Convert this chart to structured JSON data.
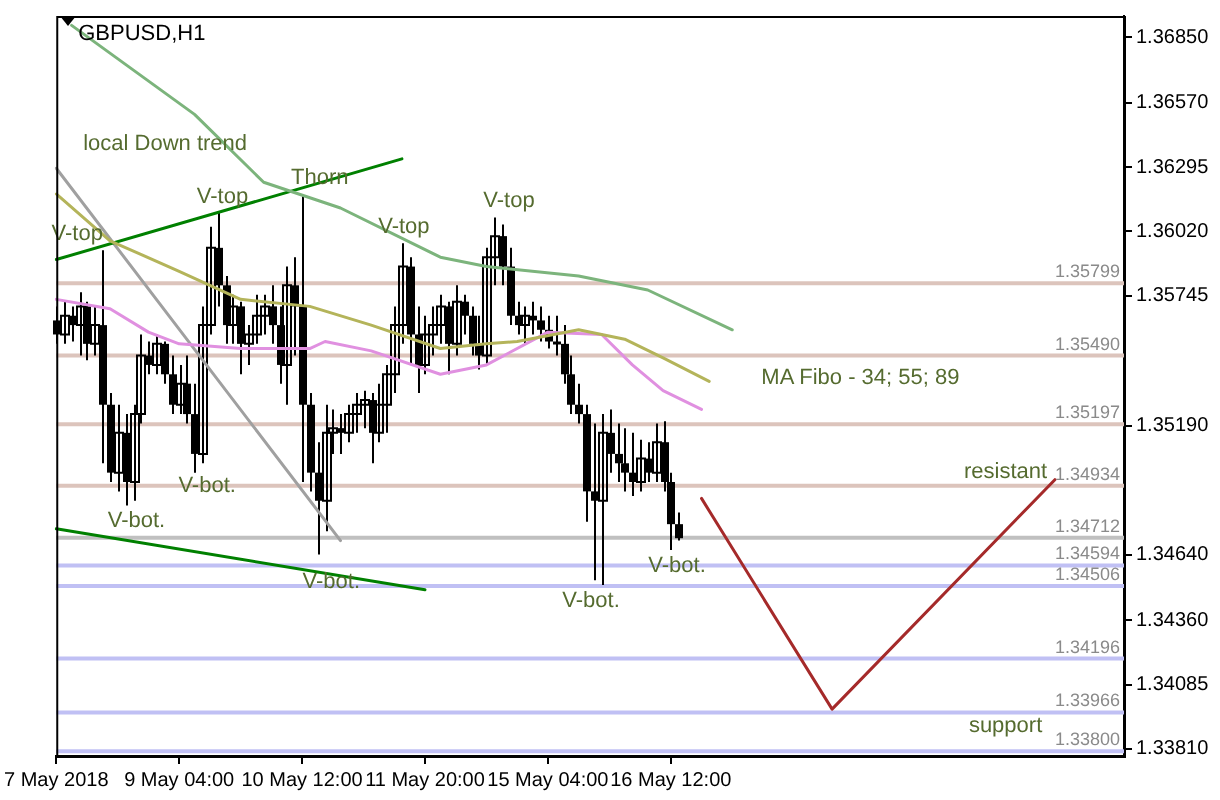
{
  "chart_data": {
    "type": "candlestick",
    "title": "GBPUSD,H1",
    "color": "#000000",
    "categories": [
      "7 May 2018",
      null,
      null,
      null,
      null,
      null,
      null,
      null,
      null,
      null,
      null,
      null,
      null,
      null,
      null,
      null,
      "9 May 04:00",
      null,
      null,
      null,
      null,
      null,
      null,
      null,
      null,
      null,
      null,
      null,
      null,
      null,
      null,
      null,
      "10 May 12:00",
      null,
      null,
      null,
      null,
      null,
      null,
      null,
      null,
      null,
      null,
      null,
      null,
      null,
      null,
      null,
      "11 May 20:00",
      null,
      null,
      null,
      null,
      null,
      null,
      null,
      null,
      null,
      null,
      null,
      null,
      null,
      null,
      null,
      "15 May 04:00",
      null,
      null,
      null,
      null,
      null,
      null,
      null,
      null,
      null,
      null,
      null,
      null,
      null,
      null,
      null,
      "16 May 12:00",
      null,
      null,
      null,
      null,
      null,
      null,
      null,
      null,
      null,
      null,
      null,
      null,
      null,
      null,
      null,
      null,
      null,
      null,
      null,
      null,
      null,
      null,
      null,
      null,
      null,
      null,
      null,
      null,
      null,
      null,
      null,
      null,
      null,
      null,
      null,
      null,
      null,
      null,
      null,
      null,
      null,
      null,
      null,
      null,
      null,
      null,
      null,
      null,
      null,
      null,
      null,
      null,
      null,
      null,
      null,
      null,
      null,
      null,
      null
    ],
    "ohlc": [
      [
        1.3564,
        1.357,
        1.3554,
        1.3558
      ],
      [
        1.3558,
        1.3572,
        1.3554,
        1.3566
      ],
      [
        1.3566,
        1.357,
        1.3555,
        1.3562
      ],
      [
        1.3562,
        1.3576,
        1.3549,
        1.357
      ],
      [
        1.357,
        1.3572,
        1.3547,
        1.3554
      ],
      [
        1.3554,
        1.357,
        1.3549,
        1.3562
      ],
      [
        1.3562,
        1.3594,
        1.3503,
        1.3528
      ],
      [
        1.3528,
        1.3533,
        1.3495,
        1.3499
      ],
      [
        1.3499,
        1.3528,
        1.3491,
        1.3516
      ],
      [
        1.3516,
        1.3524,
        1.3485,
        1.3495
      ],
      [
        1.3495,
        1.3528,
        1.3487,
        1.3524
      ],
      [
        1.3524,
        1.3558,
        1.352,
        1.3549
      ],
      [
        1.3549,
        1.3555,
        1.3541,
        1.3545
      ],
      [
        1.3545,
        1.3558,
        1.3541,
        1.3554
      ],
      [
        1.3554,
        1.3555,
        1.3537,
        1.3541
      ],
      [
        1.3541,
        1.3549,
        1.3524,
        1.3528
      ],
      [
        1.3528,
        1.3545,
        1.3524,
        1.3537
      ],
      [
        1.3537,
        1.3549,
        1.352,
        1.3524
      ],
      [
        1.3524,
        1.3537,
        1.3499,
        1.3507
      ],
      [
        1.3507,
        1.357,
        1.3503,
        1.3562
      ],
      [
        1.3562,
        1.3604,
        1.3558,
        1.3595
      ],
      [
        1.3595,
        1.361,
        1.357,
        1.3579
      ],
      [
        1.3579,
        1.3583,
        1.3554,
        1.3562
      ],
      [
        1.3562,
        1.3575,
        1.3554,
        1.357
      ],
      [
        1.357,
        1.3572,
        1.3541,
        1.3554
      ],
      [
        1.3554,
        1.3562,
        1.3545,
        1.3558
      ],
      [
        1.3558,
        1.3575,
        1.3554,
        1.3566
      ],
      [
        1.3566,
        1.3575,
        1.3558,
        1.357
      ],
      [
        1.357,
        1.3579,
        1.3554,
        1.3562
      ],
      [
        1.3562,
        1.357,
        1.3537,
        1.3545
      ],
      [
        1.3545,
        1.3587,
        1.3528,
        1.3579
      ],
      [
        1.3579,
        1.3591,
        1.3549,
        1.357
      ],
      [
        1.357,
        1.3618,
        1.3495,
        1.3528
      ],
      [
        1.3528,
        1.3533,
        1.3491,
        1.3499
      ],
      [
        1.3499,
        1.3512,
        1.3464,
        1.3487
      ],
      [
        1.3487,
        1.3528,
        1.3474,
        1.3516
      ],
      [
        1.3516,
        1.3526,
        1.3507,
        1.3518
      ],
      [
        1.3518,
        1.3524,
        1.3507,
        1.3516
      ],
      [
        1.3516,
        1.3528,
        1.3512,
        1.3524
      ],
      [
        1.3524,
        1.3533,
        1.3516,
        1.3528
      ],
      [
        1.3528,
        1.3534,
        1.3518,
        1.353
      ],
      [
        1.353,
        1.3533,
        1.3503,
        1.3516
      ],
      [
        1.3516,
        1.3537,
        1.3512,
        1.3528
      ],
      [
        1.3528,
        1.3545,
        1.3516,
        1.3541
      ],
      [
        1.3541,
        1.357,
        1.3533,
        1.3562
      ],
      [
        1.3562,
        1.3597,
        1.3554,
        1.3587
      ],
      [
        1.3587,
        1.3591,
        1.3545,
        1.3558
      ],
      [
        1.3558,
        1.357,
        1.3533,
        1.3545
      ],
      [
        1.3545,
        1.3566,
        1.3541,
        1.3558
      ],
      [
        1.3558,
        1.357,
        1.3549,
        1.3562
      ],
      [
        1.3562,
        1.3575,
        1.3554,
        1.357
      ],
      [
        1.357,
        1.3572,
        1.3541,
        1.3554
      ],
      [
        1.3554,
        1.3579,
        1.3549,
        1.3572
      ],
      [
        1.3572,
        1.3575,
        1.3558,
        1.3566
      ],
      [
        1.3566,
        1.357,
        1.3549,
        1.3554
      ],
      [
        1.3554,
        1.3566,
        1.3543,
        1.3549
      ],
      [
        1.3549,
        1.3595,
        1.3545,
        1.3591
      ],
      [
        1.3591,
        1.3608,
        1.3579,
        1.36
      ],
      [
        1.36,
        1.3605,
        1.3579,
        1.3587
      ],
      [
        1.3587,
        1.3595,
        1.3562,
        1.3566
      ],
      [
        1.3566,
        1.3572,
        1.3558,
        1.3562
      ],
      [
        1.3562,
        1.357,
        1.3554,
        1.3566
      ],
      [
        1.3566,
        1.3572,
        1.3558,
        1.3564
      ],
      [
        1.3564,
        1.357,
        1.3555,
        1.356
      ],
      [
        1.356,
        1.3566,
        1.3552,
        1.3555
      ],
      [
        1.3555,
        1.3566,
        1.3549,
        1.3554
      ],
      [
        1.3554,
        1.3562,
        1.3537,
        1.3541
      ],
      [
        1.3541,
        1.3549,
        1.3524,
        1.3528
      ],
      [
        1.3528,
        1.3537,
        1.352,
        1.3524
      ],
      [
        1.3524,
        1.3528,
        1.3478,
        1.3491
      ],
      [
        1.3491,
        1.352,
        1.3453,
        1.3487
      ],
      [
        1.3487,
        1.3524,
        1.3451,
        1.3516
      ],
      [
        1.3516,
        1.3526,
        1.3499,
        1.3507
      ],
      [
        1.3507,
        1.352,
        1.3495,
        1.3503
      ],
      [
        1.3503,
        1.3518,
        1.3491,
        1.3499
      ],
      [
        1.3499,
        1.3516,
        1.3489,
        1.3495
      ],
      [
        1.3495,
        1.3513,
        1.3491,
        1.3505
      ],
      [
        1.3505,
        1.3512,
        1.3495,
        1.3499
      ],
      [
        1.3499,
        1.352,
        1.3495,
        1.3512
      ],
      [
        1.3512,
        1.3521,
        1.3491,
        1.3495
      ],
      [
        1.3495,
        1.3499,
        1.3466,
        1.3477
      ],
      [
        1.3477,
        1.3482,
        1.347,
        1.3471
      ],
      null,
      null,
      null,
      null,
      null,
      null,
      null,
      null,
      null,
      null,
      null,
      null,
      null,
      null,
      null,
      null,
      null,
      null,
      null,
      null,
      null,
      null,
      null,
      null,
      null,
      null,
      null,
      null,
      null,
      null,
      null,
      null,
      null,
      null,
      null,
      null,
      null,
      null,
      null,
      null,
      null,
      null,
      null,
      null,
      null,
      null,
      null,
      null,
      null,
      null,
      null,
      null,
      null,
      null,
      null,
      null,
      null,
      null
    ],
    "series": [
      {
        "type": "line",
        "color": "#7cb47c",
        "values": [
          null,
          null,
          1.369,
          null,
          null,
          null,
          null,
          null,
          null,
          null,
          null,
          null,
          null,
          null,
          null,
          null,
          null,
          null,
          1.3652,
          null,
          null,
          null,
          null,
          null,
          null,
          null,
          null,
          1.3623,
          null,
          null,
          null,
          null,
          null,
          null,
          null,
          null,
          null,
          1.3612,
          null,
          null,
          null,
          null,
          null,
          null,
          null,
          null,
          null,
          null,
          null,
          null,
          1.3591,
          null,
          null,
          null,
          null,
          null,
          1.3587,
          null,
          null,
          null,
          null,
          null,
          null,
          null,
          null,
          null,
          null,
          null,
          1.3583,
          null,
          null,
          null,
          null,
          null,
          null,
          null,
          null,
          1.3577,
          null,
          null,
          null,
          null,
          null,
          null,
          null,
          null,
          null,
          null,
          1.356,
          null,
          null,
          null,
          null,
          null,
          null,
          null,
          null,
          null,
          null,
          null,
          null,
          null,
          null,
          null,
          null,
          null,
          null,
          null,
          null,
          null,
          null,
          null,
          null,
          null,
          null,
          null,
          null,
          null,
          null,
          null,
          null,
          null,
          null,
          null,
          null,
          null,
          null,
          null,
          null,
          null,
          null,
          null,
          null,
          null,
          null,
          null,
          null,
          null,
          null,
          null
        ]
      },
      {
        "type": "line",
        "color": "#b4b45a",
        "values": [
          1.3618,
          null,
          null,
          null,
          null,
          null,
          null,
          1.3598,
          null,
          null,
          null,
          null,
          null,
          null,
          null,
          null,
          1.3585,
          null,
          null,
          null,
          null,
          null,
          null,
          null,
          1.3573,
          null,
          null,
          null,
          null,
          null,
          null,
          null,
          null,
          1.357,
          null,
          null,
          null,
          null,
          null,
          null,
          null,
          1.3562,
          null,
          null,
          null,
          null,
          null,
          null,
          null,
          null,
          1.3552,
          null,
          null,
          null,
          null,
          null,
          1.3554,
          null,
          null,
          null,
          1.3555,
          null,
          null,
          null,
          null,
          null,
          null,
          null,
          1.356,
          null,
          null,
          null,
          null,
          null,
          1.3556,
          null,
          null,
          null,
          null,
          1.3548,
          null,
          null,
          null,
          null,
          null,
          1.3538,
          null,
          null,
          null,
          null,
          null,
          null,
          null,
          null,
          null,
          null,
          null,
          null,
          null,
          null,
          null,
          null,
          null,
          null,
          null,
          null,
          null,
          null,
          null,
          null,
          null,
          null,
          null,
          null,
          null,
          null,
          null,
          null,
          null,
          null,
          null,
          null,
          null,
          null,
          null,
          null,
          null,
          null,
          null,
          null,
          null,
          null,
          null,
          null,
          null,
          null,
          null,
          null,
          null,
          null
        ]
      },
      {
        "type": "line",
        "color": "#e090e0",
        "values": [
          1.3573,
          null,
          null,
          null,
          null,
          null,
          null,
          1.3569,
          null,
          null,
          null,
          null,
          1.3559,
          null,
          null,
          null,
          1.3554,
          null,
          null,
          null,
          null,
          null,
          null,
          null,
          1.3552,
          null,
          null,
          null,
          null,
          null,
          null,
          null,
          null,
          1.3552,
          null,
          1.3555,
          null,
          null,
          null,
          null,
          null,
          1.3551,
          null,
          null,
          null,
          null,
          null,
          null,
          null,
          null,
          1.3541,
          null,
          null,
          null,
          null,
          null,
          1.3545,
          null,
          null,
          null,
          null,
          null,
          null,
          null,
          1.3559,
          null,
          null,
          null,
          null,
          null,
          null,
          1.3558,
          null,
          null,
          null,
          1.3545,
          null,
          null,
          null,
          1.3534,
          null,
          null,
          null,
          null,
          1.3526,
          null,
          null,
          null,
          null,
          null,
          null,
          null,
          null,
          null,
          null,
          null,
          null,
          null,
          null,
          null,
          null,
          null,
          null,
          null,
          null,
          null,
          null,
          null,
          null,
          null,
          null,
          null,
          null,
          null,
          null,
          null,
          null,
          null,
          null,
          null,
          null,
          null,
          null,
          null,
          null,
          null,
          null,
          null,
          null,
          null,
          null,
          null,
          null,
          null,
          null,
          null,
          null,
          null,
          null,
          null
        ]
      },
      {
        "type": "line",
        "color": "#008000",
        "values": [
          1.359,
          null,
          null,
          null,
          null,
          null,
          null,
          null,
          null,
          null,
          null,
          null,
          null,
          null,
          null,
          null,
          null,
          null,
          null,
          null,
          null,
          null,
          null,
          null,
          null,
          null,
          null,
          null,
          null,
          null,
          null,
          null,
          null,
          null,
          null,
          null,
          null,
          null,
          null,
          null,
          null,
          null,
          null,
          null,
          null,
          1.3633,
          null,
          null,
          null,
          null,
          null,
          null,
          null,
          null,
          null,
          null,
          null,
          null,
          null,
          null,
          null,
          null,
          null,
          null,
          null,
          null,
          null,
          null,
          null,
          null,
          null,
          null,
          null,
          null,
          null,
          null,
          null,
          null,
          null,
          null,
          null,
          null,
          null,
          null,
          null,
          null,
          null,
          null,
          null,
          null,
          null,
          null,
          null,
          null,
          null,
          null,
          null,
          null,
          null,
          null,
          null,
          null,
          null,
          null,
          null,
          null,
          null,
          null,
          null,
          null,
          null,
          null,
          null,
          null,
          null,
          null,
          null,
          null,
          null,
          null,
          null,
          null,
          null,
          null,
          null,
          null,
          null,
          null,
          null,
          null,
          null,
          null,
          null,
          null,
          null,
          null,
          null,
          null,
          null,
          null
        ]
      },
      {
        "type": "line",
        "color": "#008000",
        "values": [
          1.3475,
          null,
          null,
          null,
          null,
          null,
          null,
          null,
          null,
          null,
          null,
          null,
          null,
          null,
          null,
          null,
          null,
          null,
          null,
          null,
          null,
          null,
          null,
          null,
          null,
          null,
          null,
          null,
          null,
          null,
          null,
          null,
          null,
          null,
          null,
          null,
          null,
          null,
          null,
          null,
          null,
          null,
          null,
          null,
          null,
          null,
          null,
          null,
          1.3449,
          null,
          null,
          null,
          null,
          null,
          null,
          null,
          null,
          null,
          null,
          null,
          null,
          null,
          null,
          null,
          null,
          null,
          null,
          null,
          null,
          null,
          null,
          null,
          null,
          null,
          null,
          null,
          null,
          null,
          null,
          null,
          null,
          null,
          null,
          null,
          null,
          null,
          null,
          null,
          null,
          null,
          null,
          null,
          null,
          null,
          null,
          null,
          null,
          null,
          null,
          null,
          null,
          null,
          null,
          null,
          null,
          null,
          null,
          null,
          null,
          null,
          null,
          null,
          null,
          null,
          null,
          null,
          null,
          null,
          null,
          null,
          null,
          null,
          null,
          null,
          null,
          null,
          null,
          null,
          null,
          null,
          null,
          null,
          null,
          null,
          null,
          null,
          null,
          null,
          null,
          null
        ]
      },
      {
        "type": "line",
        "color": "#a0a0a0",
        "values": [
          1.3629,
          null,
          null,
          null,
          null,
          null,
          null,
          null,
          null,
          null,
          null,
          null,
          null,
          null,
          null,
          null,
          null,
          null,
          null,
          null,
          null,
          null,
          null,
          null,
          null,
          null,
          null,
          null,
          null,
          null,
          null,
          null,
          null,
          null,
          null,
          null,
          null,
          1.347,
          null,
          null,
          null,
          null,
          null,
          null,
          null,
          null,
          null,
          null,
          null,
          null,
          null,
          null,
          null,
          null,
          null,
          null,
          null,
          null,
          null,
          null,
          null,
          null,
          null,
          null,
          null,
          null,
          null,
          null,
          null,
          null,
          null,
          null,
          null,
          null,
          null,
          null,
          null,
          null,
          null,
          null,
          null,
          null,
          null,
          null,
          null,
          null,
          null,
          null,
          null,
          null,
          null,
          null,
          null,
          null,
          null,
          null,
          null,
          null,
          null,
          null,
          null,
          null,
          null,
          null,
          null,
          null,
          null,
          null,
          null,
          null,
          null,
          null,
          null,
          null,
          null,
          null,
          null,
          null,
          null,
          null,
          null,
          null,
          null,
          null,
          null,
          null,
          null,
          null,
          null,
          null,
          null,
          null,
          null,
          null,
          null,
          null,
          null,
          null,
          null,
          null
        ]
      },
      {
        "type": "line",
        "color": "#a52a2a",
        "values": [
          null,
          null,
          null,
          null,
          null,
          null,
          null,
          null,
          null,
          null,
          null,
          null,
          null,
          null,
          null,
          null,
          null,
          null,
          null,
          null,
          null,
          null,
          null,
          null,
          null,
          null,
          null,
          null,
          null,
          null,
          null,
          null,
          null,
          null,
          null,
          null,
          null,
          null,
          null,
          null,
          null,
          null,
          null,
          null,
          null,
          null,
          null,
          null,
          null,
          null,
          null,
          null,
          null,
          null,
          null,
          null,
          null,
          null,
          null,
          null,
          null,
          null,
          null,
          null,
          null,
          null,
          null,
          null,
          null,
          null,
          null,
          null,
          null,
          null,
          null,
          null,
          null,
          null,
          null,
          null,
          null,
          null,
          null,
          null,
          1.3488,
          null,
          null,
          null,
          null,
          null,
          null,
          null,
          null,
          null,
          null,
          null,
          null,
          null,
          null,
          null,
          null,
          1.3398,
          null,
          null,
          null,
          null,
          null,
          null,
          null,
          null,
          null,
          null,
          null,
          null,
          null,
          null,
          null,
          null,
          null,
          null,
          null,
          null,
          null,
          null,
          null,
          null,
          null,
          null,
          null,
          null,
          1.3496,
          null,
          null,
          null,
          null,
          null,
          null,
          null,
          null,
          null
        ]
      }
    ],
    "ref_lines": [
      {
        "axis": "y",
        "value": 1.35799,
        "label": "1.35799",
        "color": "#dcc4bc"
      },
      {
        "axis": "y",
        "value": 1.3549,
        "label": "1.35490",
        "color": "#dcc4bc"
      },
      {
        "axis": "y",
        "value": 1.35197,
        "label": "1.35197",
        "color": "#dcc4bc"
      },
      {
        "axis": "y",
        "value": 1.34934,
        "label": "1.34934",
        "color": "#dcc4bc"
      },
      {
        "axis": "y",
        "value": 1.34712,
        "label": "1.34712",
        "color": "#c0c0c0"
      },
      {
        "axis": "y",
        "value": 1.34594,
        "label": "1.34594",
        "color": "#c0c0f4"
      },
      {
        "axis": "y",
        "value": 1.34506,
        "label": "1.34506",
        "color": "#c0c0f4"
      },
      {
        "axis": "y",
        "value": 1.34196,
        "label": "1.34196",
        "color": "#c0c0f4"
      },
      {
        "axis": "y",
        "value": 1.33966,
        "label": "1.33966",
        "color": "#c0c0f4"
      },
      {
        "axis": "y",
        "value": 1.338,
        "label": "1.33800",
        "color": "#c0c0f4"
      }
    ],
    "annotations": [
      "local Down trend",
      {
        "text": "V-top",
        "y": 1.3594
      },
      {
        "text": "V-top",
        "y": 1.361
      },
      {
        "text": "Thorn",
        "y": 1.3618
      },
      {
        "text": "V-top",
        "y": 1.3597
      },
      {
        "text": "V-top",
        "y": 1.3608
      },
      {
        "text": "V-bot.",
        "y": 1.3485
      },
      "V-bot.",
      "V-bot.",
      {
        "text": "V-bot.",
        "y": 1.3451
      },
      {
        "text": "V-bot.",
        "y": 1.3466
      },
      "MA Fibo - 34; 55; 89",
      "resistant",
      "support"
    ],
    "ylim": [
      1.3378,
      1.3694
    ],
    "yticks": [
      {
        "value": 1.3381,
        "label": "1.33810"
      },
      {
        "value": 1.34085,
        "label": "1.34085"
      },
      {
        "value": 1.3436,
        "label": "1.34360"
      },
      {
        "value": 1.3464,
        "label": "1.34640"
      },
      {
        "value": 1.3519,
        "label": "1.35190"
      },
      {
        "value": 1.35745,
        "label": "1.35745"
      },
      {
        "value": 1.3602,
        "label": "1.36020"
      },
      {
        "value": 1.36295,
        "label": "1.36295"
      },
      {
        "value": 1.3657,
        "label": "1.36570"
      },
      {
        "value": 1.3685,
        "label": "1.36850"
      }
    ]
  }
}
